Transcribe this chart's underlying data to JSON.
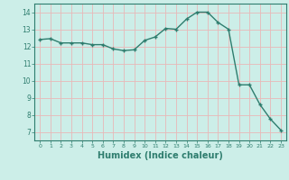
{
  "x": [
    0,
    1,
    2,
    3,
    4,
    5,
    6,
    7,
    8,
    9,
    10,
    11,
    12,
    13,
    14,
    15,
    16,
    17,
    18,
    19,
    20,
    21,
    22,
    23
  ],
  "y": [
    12.4,
    12.45,
    12.2,
    12.2,
    12.2,
    12.1,
    12.1,
    11.85,
    11.75,
    11.8,
    12.35,
    12.55,
    13.05,
    13.0,
    13.6,
    14.0,
    14.0,
    13.4,
    13.0,
    9.75,
    9.75,
    8.6,
    7.75,
    7.1
  ],
  "line_color": "#2e7d6e",
  "marker": "+",
  "markersize": 3.5,
  "linewidth": 1.0,
  "xlabel": "Humidex (Indice chaleur)",
  "xlabel_fontsize": 7,
  "bg_color": "#cceee8",
  "grid_color": "#e8b8b8",
  "tick_color": "#2e7d6e",
  "label_color": "#2e7d6e",
  "xlim": [
    -0.5,
    23.5
  ],
  "ylim": [
    6.5,
    14.5
  ],
  "yticks": [
    7,
    8,
    9,
    10,
    11,
    12,
    13,
    14
  ],
  "xticks": [
    0,
    1,
    2,
    3,
    4,
    5,
    6,
    7,
    8,
    9,
    10,
    11,
    12,
    13,
    14,
    15,
    16,
    17,
    18,
    19,
    20,
    21,
    22,
    23
  ]
}
